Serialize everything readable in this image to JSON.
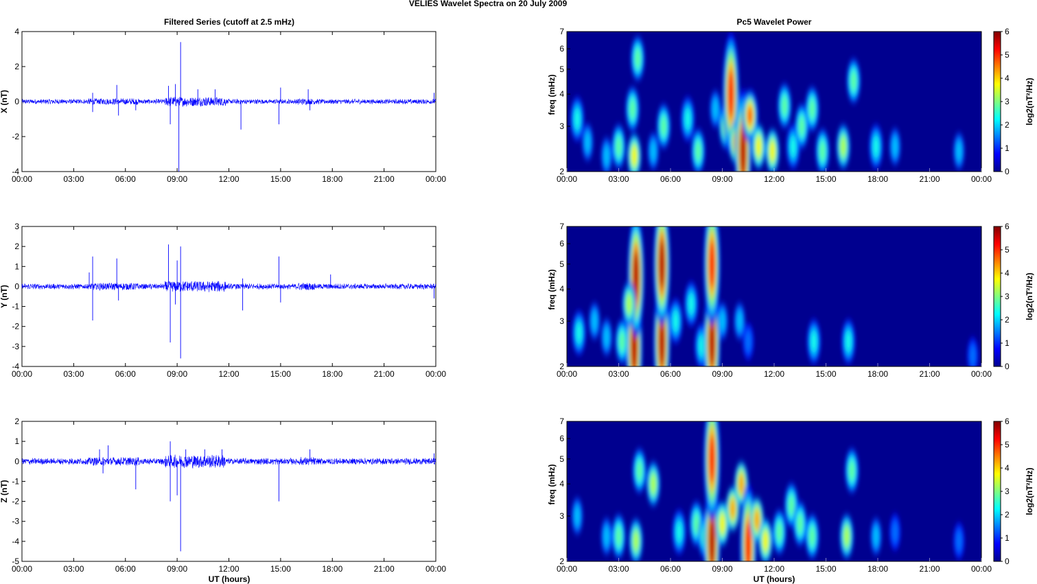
{
  "figure_title": "VELIES Wavelet Spectra on 20 July      2009",
  "left_title": "Filtered Series (cutoff at 2.5 mHz)",
  "right_title": "Pc5 Wavelet Power",
  "time_ticks": [
    "00:00",
    "03:00",
    "06:00",
    "09:00",
    "12:00",
    "15:00",
    "18:00",
    "21:00",
    "00:00"
  ],
  "xlabel": "UT (hours)",
  "freq_label": "freq (mHz)",
  "freq_ticks": [
    "2",
    "3",
    "4",
    "5",
    "6",
    "7"
  ],
  "colorbar_label": "log2(nT²/Hz)",
  "colorbar_ticks": [
    "0",
    "1",
    "2",
    "3",
    "4",
    "5",
    "6"
  ],
  "colors": {
    "series_line": "#0000ff",
    "heatmap_background": "#00008f"
  },
  "chart_data": [
    {
      "type": "line",
      "panel": "X",
      "ylabel": "X (nT)",
      "xlim_hours": [
        0,
        24
      ],
      "ylim": [
        -4,
        4
      ],
      "yticks": [
        "-4",
        "-2",
        "0",
        "2",
        "4"
      ],
      "noise_amplitude": 0.12,
      "spikes": [
        [
          4.1,
          -0.6
        ],
        [
          4.1,
          0.5
        ],
        [
          5.5,
          0.95
        ],
        [
          5.6,
          -0.8
        ],
        [
          6.6,
          -0.5
        ],
        [
          8.5,
          0.9
        ],
        [
          8.6,
          -1.3
        ],
        [
          8.9,
          1.0
        ],
        [
          9.1,
          -4.0
        ],
        [
          9.2,
          3.4
        ],
        [
          10.2,
          0.7
        ],
        [
          11.2,
          0.7
        ],
        [
          12.7,
          -1.6
        ],
        [
          14.9,
          -1.3
        ],
        [
          15.0,
          0.8
        ],
        [
          16.6,
          0.7
        ],
        [
          16.7,
          -0.5
        ],
        [
          23.9,
          0.5
        ]
      ]
    },
    {
      "type": "line",
      "panel": "Y",
      "ylabel": "Y (nT)",
      "xlim_hours": [
        0,
        24
      ],
      "ylim": [
        -4,
        3
      ],
      "yticks": [
        "-4",
        "-3",
        "-2",
        "-1",
        "0",
        "1",
        "2",
        "3"
      ],
      "noise_amplitude": 0.12,
      "spikes": [
        [
          3.9,
          0.7
        ],
        [
          4.1,
          1.5
        ],
        [
          4.1,
          -1.7
        ],
        [
          5.5,
          1.4
        ],
        [
          5.6,
          -0.7
        ],
        [
          8.5,
          2.1
        ],
        [
          8.6,
          -2.8
        ],
        [
          8.9,
          -0.9
        ],
        [
          9.0,
          1.3
        ],
        [
          9.2,
          2.0
        ],
        [
          9.2,
          -3.6
        ],
        [
          12.8,
          -1.2
        ],
        [
          12.8,
          0.4
        ],
        [
          14.9,
          1.5
        ],
        [
          15.0,
          -0.8
        ],
        [
          17.9,
          0.6
        ],
        [
          23.9,
          -0.6
        ]
      ]
    },
    {
      "type": "line",
      "panel": "Z",
      "ylabel": "Z (nT)",
      "xlim_hours": [
        0,
        24
      ],
      "ylim": [
        -5,
        2
      ],
      "yticks": [
        "-5",
        "-4",
        "-3",
        "-2",
        "-1",
        "0",
        "1",
        "2"
      ],
      "noise_amplitude": 0.14,
      "spikes": [
        [
          4.5,
          0.6
        ],
        [
          4.7,
          -0.6
        ],
        [
          5.0,
          0.8
        ],
        [
          6.6,
          -1.4
        ],
        [
          8.6,
          1.0
        ],
        [
          8.6,
          -2.0
        ],
        [
          9.0,
          -1.7
        ],
        [
          9.2,
          -4.5
        ],
        [
          9.5,
          0.6
        ],
        [
          10.6,
          0.6
        ],
        [
          11.6,
          0.6
        ],
        [
          14.9,
          -2.0
        ],
        [
          16.7,
          0.6
        ],
        [
          23.9,
          0.4
        ]
      ]
    },
    {
      "type": "heatmap",
      "panel": "X",
      "title": "Pc5 Wavelet Power",
      "xlim_hours": [
        0,
        24
      ],
      "ylim_mHz": [
        2,
        7
      ],
      "log_frequency_axis": true,
      "colorbar_range": [
        0,
        6
      ],
      "colormap": "jet",
      "blobs": [
        [
          0.6,
          3.2,
          2.5
        ],
        [
          1.2,
          2.6,
          2.0
        ],
        [
          2.3,
          2.3,
          2.0
        ],
        [
          3.0,
          2.5,
          3.0
        ],
        [
          3.9,
          2.3,
          4.0
        ],
        [
          3.8,
          3.5,
          3.0
        ],
        [
          4.1,
          5.5,
          3.0
        ],
        [
          5.0,
          2.4,
          2.0
        ],
        [
          5.6,
          3.0,
          3.0
        ],
        [
          7.0,
          3.2,
          2.5
        ],
        [
          7.6,
          2.4,
          3.0
        ],
        [
          8.6,
          3.5,
          2.0
        ],
        [
          9.2,
          3.0,
          3.5
        ],
        [
          9.5,
          4.0,
          5.5
        ],
        [
          9.8,
          2.6,
          4.5
        ],
        [
          10.2,
          2.4,
          6.0
        ],
        [
          10.6,
          3.3,
          5.0
        ],
        [
          11.1,
          2.5,
          4.0
        ],
        [
          11.9,
          2.4,
          4.0
        ],
        [
          12.6,
          3.6,
          3.0
        ],
        [
          13.1,
          2.5,
          2.5
        ],
        [
          13.6,
          3.0,
          3.0
        ],
        [
          14.2,
          3.5,
          3.0
        ],
        [
          14.8,
          2.4,
          3.0
        ],
        [
          16.0,
          2.5,
          3.5
        ],
        [
          16.6,
          4.5,
          3.0
        ],
        [
          17.9,
          2.5,
          2.5
        ],
        [
          19.0,
          2.5,
          2.0
        ],
        [
          22.7,
          2.4,
          2.0
        ]
      ]
    },
    {
      "type": "heatmap",
      "panel": "Y",
      "xlim_hours": [
        0,
        24
      ],
      "ylim_mHz": [
        2,
        7
      ],
      "log_frequency_axis": true,
      "colorbar_range": [
        0,
        6
      ],
      "colormap": "jet",
      "blobs": [
        [
          0.7,
          2.7,
          2.5
        ],
        [
          1.6,
          3.0,
          2.0
        ],
        [
          2.3,
          2.6,
          2.0
        ],
        [
          3.2,
          2.5,
          3.0
        ],
        [
          3.9,
          2.4,
          6.0
        ],
        [
          4.0,
          4.5,
          6.0
        ],
        [
          3.6,
          3.5,
          3.5
        ],
        [
          5.5,
          2.5,
          6.0
        ],
        [
          5.5,
          5.0,
          6.0
        ],
        [
          6.3,
          3.0,
          2.5
        ],
        [
          7.2,
          3.5,
          2.5
        ],
        [
          7.8,
          2.4,
          2.5
        ],
        [
          8.4,
          2.5,
          6.0
        ],
        [
          8.4,
          5.0,
          5.5
        ],
        [
          9.0,
          3.0,
          2.0
        ],
        [
          10.0,
          3.0,
          2.0
        ],
        [
          10.5,
          2.5,
          1.5
        ],
        [
          14.3,
          2.5,
          2.5
        ],
        [
          16.3,
          2.5,
          2.5
        ],
        [
          23.5,
          2.2,
          1.5
        ]
      ]
    },
    {
      "type": "heatmap",
      "panel": "Z",
      "xlim_hours": [
        0,
        24
      ],
      "ylim_mHz": [
        2,
        7
      ],
      "log_frequency_axis": true,
      "colorbar_range": [
        0,
        6
      ],
      "colormap": "jet",
      "blobs": [
        [
          0.6,
          3.0,
          2.0
        ],
        [
          2.3,
          2.5,
          2.0
        ],
        [
          3.0,
          2.5,
          3.0
        ],
        [
          4.0,
          2.4,
          3.5
        ],
        [
          4.2,
          4.5,
          3.0
        ],
        [
          5.0,
          4.0,
          3.5
        ],
        [
          6.5,
          2.6,
          2.5
        ],
        [
          7.5,
          2.8,
          3.0
        ],
        [
          8.0,
          2.5,
          3.0
        ],
        [
          8.4,
          2.4,
          6.0
        ],
        [
          8.4,
          5.0,
          5.5
        ],
        [
          9.0,
          2.8,
          4.0
        ],
        [
          9.6,
          3.2,
          4.5
        ],
        [
          10.1,
          4.0,
          4.5
        ],
        [
          10.5,
          2.3,
          5.5
        ],
        [
          11.0,
          2.9,
          4.5
        ],
        [
          11.5,
          2.4,
          4.0
        ],
        [
          12.3,
          2.6,
          3.0
        ],
        [
          13.0,
          3.3,
          3.0
        ],
        [
          13.5,
          2.8,
          3.0
        ],
        [
          14.2,
          2.5,
          3.0
        ],
        [
          16.2,
          2.5,
          3.5
        ],
        [
          16.5,
          4.5,
          3.0
        ],
        [
          17.9,
          2.5,
          2.0
        ],
        [
          19.0,
          2.6,
          1.5
        ],
        [
          22.7,
          2.4,
          1.5
        ]
      ]
    }
  ]
}
